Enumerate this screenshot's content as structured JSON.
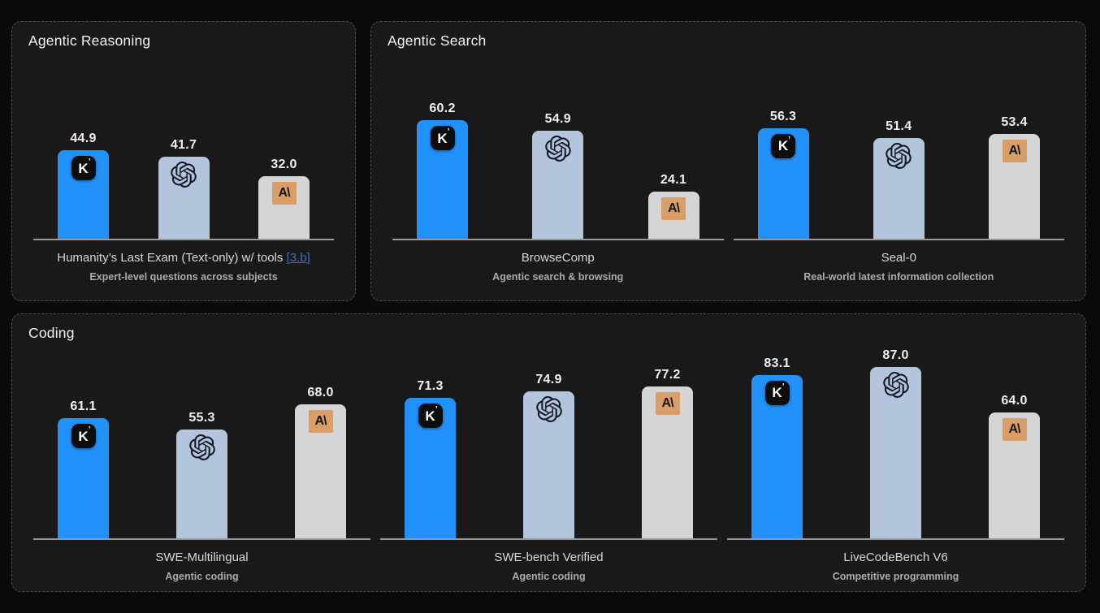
{
  "colors": {
    "page_background": "#0A0A0A",
    "panel_background": "#191919",
    "panel_border": "#4E4E4E",
    "axis": "#999999",
    "value_label": "#EFEFEF",
    "link": "#3E6BC4"
  },
  "models": [
    {
      "id": "kimi",
      "icon": "kimi-logo",
      "bar_color": "#2191FB",
      "badge_bg": "#0D0D0D",
      "badge_letter": "K",
      "badge_letter_color": "#FFFFFF"
    },
    {
      "id": "openai",
      "icon": "openai-logo",
      "bar_color": "#B3C4DD",
      "logo_color": "#121A26"
    },
    {
      "id": "anthropic",
      "icon": "anthropic-logo",
      "bar_color": "#D5D5D5",
      "badge_bg": "#D99E68",
      "badge_letter": "A\\",
      "badge_letter_color": "#151515"
    }
  ],
  "panels": [
    {
      "title": "Agentic Reasoning",
      "charts": [
        0
      ]
    },
    {
      "title": "Agentic Search",
      "charts": [
        1,
        2
      ]
    },
    {
      "title": "Coding",
      "charts": [
        3,
        4,
        5
      ]
    }
  ],
  "chart_data": [
    {
      "type": "bar",
      "group": "Agentic Reasoning",
      "benchmark": "Humanity’s Last Exam (Text-only) w/ tools",
      "footnote_link": "[3.b]",
      "description": "Expert-level questions across subjects",
      "categories": [
        "kimi",
        "openai",
        "anthropic"
      ],
      "values": [
        44.9,
        41.7,
        32.0
      ]
    },
    {
      "type": "bar",
      "group": "Agentic Search",
      "benchmark": "BrowseComp",
      "description": "Agentic search & browsing",
      "categories": [
        "kimi",
        "openai",
        "anthropic"
      ],
      "values": [
        60.2,
        54.9,
        24.1
      ]
    },
    {
      "type": "bar",
      "group": "Agentic Search",
      "benchmark": "Seal-0",
      "description": "Real-world latest information collection",
      "categories": [
        "kimi",
        "openai",
        "anthropic"
      ],
      "values": [
        56.3,
        51.4,
        53.4
      ]
    },
    {
      "type": "bar",
      "group": "Coding",
      "benchmark": "SWE-Multilingual",
      "description": "Agentic coding",
      "categories": [
        "kimi",
        "openai",
        "anthropic"
      ],
      "values": [
        61.1,
        55.3,
        68.0
      ]
    },
    {
      "type": "bar",
      "group": "Coding",
      "benchmark": "SWE-bench Verified",
      "description": "Agentic coding",
      "categories": [
        "kimi",
        "openai",
        "anthropic"
      ],
      "values": [
        71.3,
        74.9,
        77.2
      ]
    },
    {
      "type": "bar",
      "group": "Coding",
      "benchmark": "LiveCodeBench V6",
      "description": "Competitive programming",
      "categories": [
        "kimi",
        "openai",
        "anthropic"
      ],
      "values": [
        83.1,
        87.0,
        64.0
      ]
    }
  ]
}
